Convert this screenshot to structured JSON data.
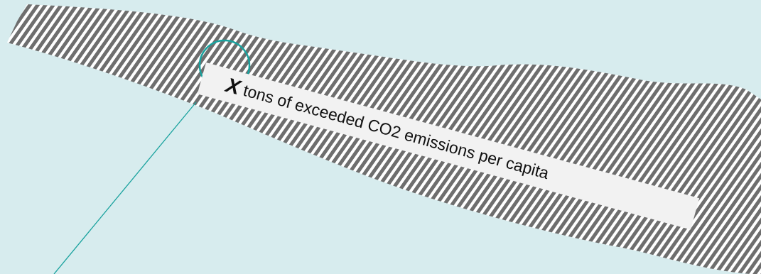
{
  "annotation": {
    "marker": "X",
    "text": "tons of exceeded CO2 emissions per capita"
  },
  "colors": {
    "background": "#d7ecee",
    "hatch_dark": "#6e6e6e",
    "hatch_light": "#ffffff",
    "callout_stroke": "#19a29e",
    "label_background": "#f2f2f2"
  }
}
